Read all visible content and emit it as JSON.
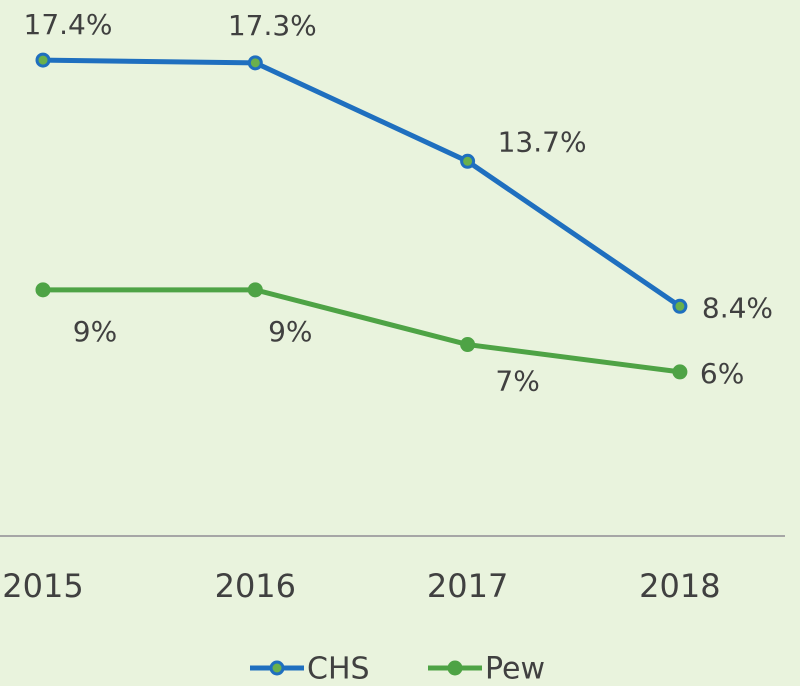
{
  "chart_data": {
    "type": "line",
    "categories": [
      "2015",
      "2016",
      "2017",
      "2018"
    ],
    "series": [
      {
        "name": "CHS",
        "color": "#1f6fbf",
        "marker_fill": "#6ab04c",
        "values": [
          17.4,
          17.3,
          13.7,
          8.4
        ],
        "value_labels": [
          "17.4%",
          "17.3%",
          "13.7%",
          "8.4%"
        ]
      },
      {
        "name": "Pew",
        "color": "#4ea345",
        "marker_fill": "#4ea345",
        "values": [
          9,
          9,
          7,
          6
        ],
        "value_labels": [
          "9%",
          "9%",
          "7%",
          "6%"
        ]
      }
    ],
    "ylim": [
      0,
      20
    ],
    "grid": false,
    "legend": "bottom"
  }
}
